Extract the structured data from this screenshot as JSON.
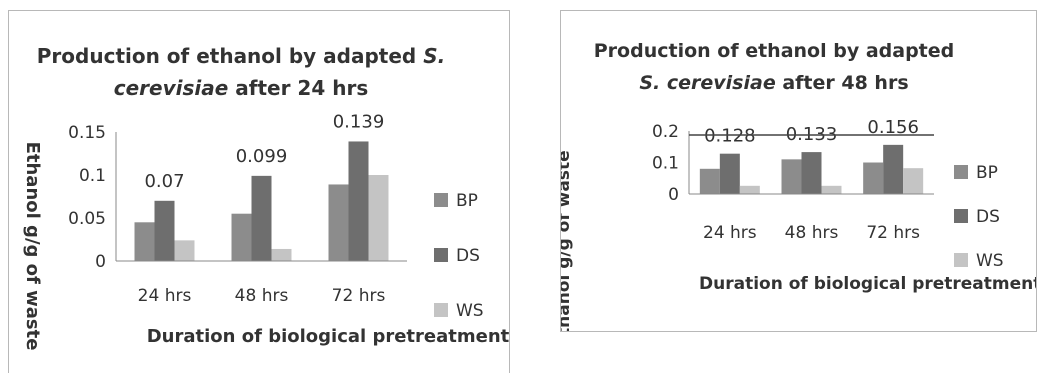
{
  "chart_data": [
    {
      "type": "bar",
      "title_line1": "Production of ethanol by adapted",
      "title_italic": "S.",
      "title_line2_italic": "cerevisiae",
      "title_line2_rest": "  after 24 hrs",
      "ylabel": "Ethanol g/g of waste",
      "xlabel": "Duration of biological pretreatment",
      "categories": [
        "24 hrs",
        "48 hrs",
        "72 hrs"
      ],
      "series": [
        {
          "name": "BP",
          "values": [
            0.045,
            0.055,
            0.089
          ],
          "color": "#8c8c8c"
        },
        {
          "name": "DS",
          "values": [
            0.07,
            0.099,
            0.139
          ],
          "color": "#6e6e6e"
        },
        {
          "name": "WS",
          "values": [
            0.024,
            0.014,
            0.1
          ],
          "color": "#c4c4c4"
        }
      ],
      "data_labels": [
        "0.07",
        "0.099",
        "0.139"
      ],
      "yticks": [
        "0",
        "0.05",
        "0.1",
        "0.15"
      ],
      "ylim": [
        0,
        0.15
      ],
      "grid": false,
      "legend_position": "right"
    },
    {
      "type": "bar",
      "title_line1": "Production of ethanol by adapted",
      "title_line2_italic": "S. cerevisiae",
      "title_line2_rest": " after 48 hrs",
      "ylabel": "Ethanol g/g of waste",
      "xlabel": "Duration of biological pretreatment",
      "categories": [
        "24 hrs",
        "48 hrs",
        "72 hrs"
      ],
      "series": [
        {
          "name": "BP",
          "values": [
            0.08,
            0.11,
            0.1
          ],
          "color": "#8c8c8c"
        },
        {
          "name": "DS",
          "values": [
            0.128,
            0.133,
            0.156
          ],
          "color": "#6e6e6e"
        },
        {
          "name": "WS",
          "values": [
            0.026,
            0.026,
            0.082
          ],
          "color": "#c4c4c4"
        }
      ],
      "data_labels": [
        "0.128",
        "0.133",
        "0.156"
      ],
      "yticks": [
        "0",
        "0.1",
        "0.2"
      ],
      "ylim": [
        0,
        0.2
      ],
      "grid": false,
      "legend_position": "right"
    }
  ]
}
